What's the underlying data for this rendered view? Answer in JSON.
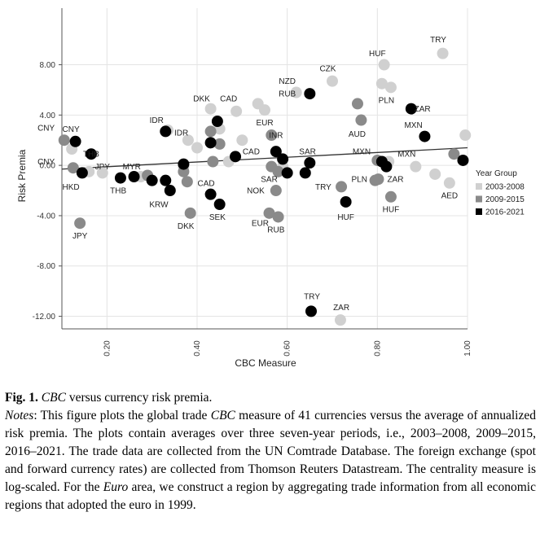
{
  "chart_data": {
    "type": "scatter",
    "xlabel": "CBC Measure",
    "ylabel": "Risk Premia",
    "xlim": [
      0.1,
      1.0
    ],
    "ylim": [
      -13.0,
      12.5
    ],
    "x_ticks": [
      0.2,
      0.4,
      0.6,
      0.8,
      1.0
    ],
    "x_tick_labels": [
      "0.20",
      "0.40",
      "0.60",
      "0.80",
      "1.00"
    ],
    "y_ticks": [
      8,
      4,
      0,
      -4,
      -8,
      -12
    ],
    "y_tick_labels": [
      "8.00",
      "4.00",
      "0.00",
      "-4.00",
      "-8.00",
      "-12.00"
    ],
    "grid": "vertical and horizontal",
    "legend": {
      "title": "Year Group",
      "position": "right",
      "entries": [
        {
          "name": "2003-2008",
          "color": "#d0d0d0"
        },
        {
          "name": "2009-2015",
          "color": "#8a8a8a"
        },
        {
          "name": "2016-2021",
          "color": "#000000"
        }
      ]
    },
    "trendline": {
      "x": [
        0.1,
        1.0
      ],
      "y": [
        -0.3,
        1.4
      ],
      "color": "#333333"
    },
    "series": [
      {
        "name": "2003-2008",
        "color": "#d0d0d0",
        "points": [
          {
            "x": 0.122,
            "y": 1.3,
            "label": ""
          },
          {
            "x": 0.16,
            "y": -0.5,
            "label": ""
          },
          {
            "x": 0.19,
            "y": -0.6,
            "label": ""
          },
          {
            "x": 0.275,
            "y": -0.9,
            "label": ""
          },
          {
            "x": 0.335,
            "y": 2.8,
            "label": ""
          },
          {
            "x": 0.37,
            "y": -0.1,
            "label": ""
          },
          {
            "x": 0.38,
            "y": 2.0,
            "label": ""
          },
          {
            "x": 0.4,
            "y": 1.4,
            "label": ""
          },
          {
            "x": 0.43,
            "y": 4.5,
            "label": ""
          },
          {
            "x": 0.45,
            "y": 2.9,
            "label": ""
          },
          {
            "x": 0.47,
            "y": 0.3,
            "label": ""
          },
          {
            "x": 0.487,
            "y": 4.3,
            "label": ""
          },
          {
            "x": 0.5,
            "y": 2.0,
            "label": ""
          },
          {
            "x": 0.535,
            "y": 4.9,
            "label": ""
          },
          {
            "x": 0.55,
            "y": 4.4,
            "label": ""
          },
          {
            "x": 0.59,
            "y": -0.1,
            "label": ""
          },
          {
            "x": 0.62,
            "y": 5.8,
            "label": ""
          },
          {
            "x": 0.7,
            "y": 6.7,
            "label": ""
          },
          {
            "x": 0.718,
            "y": -12.3,
            "label": ""
          },
          {
            "x": 0.81,
            "y": 6.5,
            "label": ""
          },
          {
            "x": 0.815,
            "y": 8.0,
            "label": ""
          },
          {
            "x": 0.83,
            "y": 6.2,
            "label": ""
          },
          {
            "x": 0.825,
            "y": 0.3,
            "label": ""
          },
          {
            "x": 0.885,
            "y": -0.1,
            "label": ""
          },
          {
            "x": 0.928,
            "y": -0.7,
            "label": ""
          },
          {
            "x": 0.945,
            "y": 8.9,
            "label": ""
          },
          {
            "x": 0.96,
            "y": -1.4,
            "label": ""
          },
          {
            "x": 0.995,
            "y": 2.4,
            "label": ""
          }
        ]
      },
      {
        "name": "2009-2015",
        "color": "#8a8a8a",
        "points": [
          {
            "x": 0.105,
            "y": 2.0,
            "label": ""
          },
          {
            "x": 0.125,
            "y": -0.2,
            "label": ""
          },
          {
            "x": 0.14,
            "y": -4.6,
            "label": ""
          },
          {
            "x": 0.29,
            "y": -0.8,
            "label": ""
          },
          {
            "x": 0.37,
            "y": -0.5,
            "label": ""
          },
          {
            "x": 0.378,
            "y": -1.3,
            "label": ""
          },
          {
            "x": 0.385,
            "y": -3.8,
            "label": ""
          },
          {
            "x": 0.43,
            "y": 2.7,
            "label": ""
          },
          {
            "x": 0.435,
            "y": 0.3,
            "label": ""
          },
          {
            "x": 0.45,
            "y": 1.7,
            "label": ""
          },
          {
            "x": 0.565,
            "y": 2.4,
            "label": ""
          },
          {
            "x": 0.565,
            "y": -0.1,
            "label": ""
          },
          {
            "x": 0.575,
            "y": -2.0,
            "label": ""
          },
          {
            "x": 0.56,
            "y": -3.8,
            "label": ""
          },
          {
            "x": 0.58,
            "y": -4.1,
            "label": ""
          },
          {
            "x": 0.58,
            "y": -0.5,
            "label": ""
          },
          {
            "x": 0.72,
            "y": -1.7,
            "label": ""
          },
          {
            "x": 0.756,
            "y": 4.9,
            "label": ""
          },
          {
            "x": 0.764,
            "y": 3.6,
            "label": ""
          },
          {
            "x": 0.795,
            "y": -1.2,
            "label": ""
          },
          {
            "x": 0.802,
            "y": -1.1,
            "label": ""
          },
          {
            "x": 0.8,
            "y": 0.4,
            "label": ""
          },
          {
            "x": 0.83,
            "y": -2.5,
            "label": ""
          },
          {
            "x": 0.97,
            "y": 0.9,
            "label": ""
          }
        ]
      },
      {
        "name": "2016-2021",
        "color": "#000000",
        "points": [
          {
            "x": 0.13,
            "y": 1.9,
            "label": ""
          },
          {
            "x": 0.145,
            "y": -0.6,
            "label": ""
          },
          {
            "x": 0.165,
            "y": 0.9,
            "label": ""
          },
          {
            "x": 0.23,
            "y": -1.0,
            "label": ""
          },
          {
            "x": 0.26,
            "y": -0.9,
            "label": ""
          },
          {
            "x": 0.3,
            "y": -1.2,
            "label": ""
          },
          {
            "x": 0.33,
            "y": -1.2,
            "label": ""
          },
          {
            "x": 0.34,
            "y": -2.0,
            "label": ""
          },
          {
            "x": 0.33,
            "y": 2.7,
            "label": ""
          },
          {
            "x": 0.37,
            "y": 0.1,
            "label": ""
          },
          {
            "x": 0.43,
            "y": 1.8,
            "label": ""
          },
          {
            "x": 0.445,
            "y": 3.5,
            "label": ""
          },
          {
            "x": 0.43,
            "y": -2.3,
            "label": ""
          },
          {
            "x": 0.45,
            "y": -3.1,
            "label": ""
          },
          {
            "x": 0.485,
            "y": 0.7,
            "label": ""
          },
          {
            "x": 0.575,
            "y": 1.1,
            "label": ""
          },
          {
            "x": 0.59,
            "y": 0.5,
            "label": ""
          },
          {
            "x": 0.6,
            "y": -0.6,
            "label": ""
          },
          {
            "x": 0.65,
            "y": 0.2,
            "label": ""
          },
          {
            "x": 0.64,
            "y": -0.6,
            "label": ""
          },
          {
            "x": 0.65,
            "y": 5.7,
            "label": ""
          },
          {
            "x": 0.653,
            "y": -11.6,
            "label": ""
          },
          {
            "x": 0.73,
            "y": -2.9,
            "label": ""
          },
          {
            "x": 0.81,
            "y": 0.3,
            "label": ""
          },
          {
            "x": 0.82,
            "y": -0.1,
            "label": ""
          },
          {
            "x": 0.875,
            "y": 4.5,
            "label": ""
          },
          {
            "x": 0.905,
            "y": 2.3,
            "label": ""
          },
          {
            "x": 0.99,
            "y": 0.4,
            "label": ""
          }
        ]
      }
    ],
    "annotations": [
      {
        "text": "TRY",
        "x": 0.935,
        "y": 10.0
      },
      {
        "text": "HUF",
        "x": 0.8,
        "y": 8.9
      },
      {
        "text": "CZK",
        "x": 0.69,
        "y": 7.7
      },
      {
        "text": "NZD",
        "x": 0.6,
        "y": 6.7
      },
      {
        "text": "RUB",
        "x": 0.6,
        "y": 5.7
      },
      {
        "text": "PLN",
        "x": 0.82,
        "y": 5.2
      },
      {
        "text": "ZAR",
        "x": 0.9,
        "y": 4.5
      },
      {
        "text": "MXN",
        "x": 0.88,
        "y": 3.2
      },
      {
        "text": "DKK",
        "x": 0.41,
        "y": 5.3
      },
      {
        "text": "CAD",
        "x": 0.47,
        "y": 5.3
      },
      {
        "text": "IDR",
        "x": 0.31,
        "y": 3.6
      },
      {
        "text": "EUR",
        "x": 0.55,
        "y": 3.4
      },
      {
        "text": "AUD",
        "x": 0.755,
        "y": 2.5
      },
      {
        "text": "CNY",
        "x": 0.065,
        "y": 3.0
      },
      {
        "text": "CNY",
        "x": 0.12,
        "y": 2.9
      },
      {
        "text": "IDR",
        "x": 0.365,
        "y": 2.6
      },
      {
        "text": "INR",
        "x": 0.575,
        "y": 2.4
      },
      {
        "text": "THB",
        "x": 0.165,
        "y": 0.9
      },
      {
        "text": "CAD",
        "x": 0.52,
        "y": 1.1
      },
      {
        "text": "SAR",
        "x": 0.645,
        "y": 1.1
      },
      {
        "text": "MXN",
        "x": 0.765,
        "y": 1.1
      },
      {
        "text": "MXN",
        "x": 0.865,
        "y": 0.9
      },
      {
        "text": "CNY",
        "x": 0.065,
        "y": 0.3
      },
      {
        "text": "JPY",
        "x": 0.19,
        "y": -0.1
      },
      {
        "text": "MYR",
        "x": 0.255,
        "y": -0.1
      },
      {
        "text": "HKD",
        "x": 0.12,
        "y": -1.7
      },
      {
        "text": "THB",
        "x": 0.225,
        "y": -2.0
      },
      {
        "text": "CAD",
        "x": 0.42,
        "y": -1.4
      },
      {
        "text": "SAR",
        "x": 0.56,
        "y": -1.1
      },
      {
        "text": "NOK",
        "x": 0.53,
        "y": -2.0
      },
      {
        "text": "TRY",
        "x": 0.68,
        "y": -1.7
      },
      {
        "text": "PLN",
        "x": 0.76,
        "y": -1.1
      },
      {
        "text": "ZAR",
        "x": 0.84,
        "y": -1.1
      },
      {
        "text": "AED",
        "x": 0.96,
        "y": -2.4
      },
      {
        "text": "KRW",
        "x": 0.315,
        "y": -3.1
      },
      {
        "text": "SEK",
        "x": 0.445,
        "y": -4.1
      },
      {
        "text": "DKK",
        "x": 0.375,
        "y": -4.8
      },
      {
        "text": "EUR",
        "x": 0.54,
        "y": -4.6
      },
      {
        "text": "RUB",
        "x": 0.575,
        "y": -5.1
      },
      {
        "text": "HUF",
        "x": 0.73,
        "y": -4.1
      },
      {
        "text": "HUF",
        "x": 0.83,
        "y": -3.5
      },
      {
        "text": "JPY",
        "x": 0.14,
        "y": -5.6
      },
      {
        "text": "TRY",
        "x": 0.655,
        "y": -10.4
      },
      {
        "text": "ZAR",
        "x": 0.72,
        "y": -11.3
      }
    ]
  },
  "caption": {
    "fig_label": "Fig. 1.",
    "title_pre": "",
    "title_ital": "CBC",
    "title_post": " versus currency risk premia.",
    "notes_label": "Notes",
    "notes_p1": ": This figure plots the global trade ",
    "notes_ital1": "CBC",
    "notes_p2": " measure of 41 currencies versus the average of annualized risk premia. The plots contain averages over three seven-year periods, i.e., 2003–2008, 2009–2015, 2016–2021. The trade data are collected from the UN Comtrade Database. The foreign exchange (spot and forward currency rates) are collected from Thomson Reuters Datastream. The centrality measure is log-scaled. For the ",
    "notes_ital2": "Euro",
    "notes_p3": " area, we construct a region by aggregating trade information from all economic regions that adopted the euro in 1999."
  }
}
